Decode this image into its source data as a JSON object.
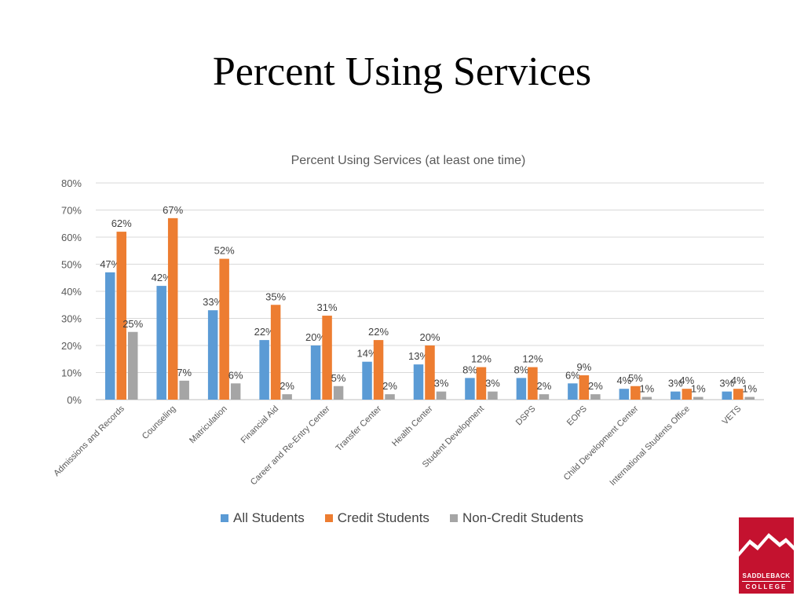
{
  "slide": {
    "title": "Percent Using Services"
  },
  "logo": {
    "line1": "SADDLEBACK",
    "line2": "COLLEGE"
  },
  "chart_data": {
    "type": "bar",
    "title": "Percent Using Services (at least one time)",
    "xlabel": "",
    "ylabel": "",
    "ylim": [
      0,
      80
    ],
    "yticks": [
      "0%",
      "10%",
      "20%",
      "30%",
      "40%",
      "50%",
      "60%",
      "70%",
      "80%"
    ],
    "grid": true,
    "legend_position": "bottom",
    "categories": [
      "Admissions and Records",
      "Counseling",
      "Matriculation",
      "Financial Aid",
      "Career and Re-Entry Center",
      "Transfer Center",
      "Health Center",
      "Student Development",
      "DSPS",
      "EOPS",
      "Child Development Center",
      "International Students Office",
      "VETS"
    ],
    "series": [
      {
        "name": "All Students",
        "color": "#5b9bd5",
        "values": [
          47,
          42,
          33,
          22,
          20,
          14,
          13,
          8,
          8,
          6,
          4,
          3,
          3
        ]
      },
      {
        "name": "Credit Students",
        "color": "#ed7d31",
        "values": [
          62,
          67,
          52,
          35,
          31,
          22,
          20,
          12,
          12,
          9,
          5,
          4,
          4
        ]
      },
      {
        "name": "Non-Credit Students",
        "color": "#a5a5a5",
        "values": [
          25,
          7,
          6,
          2,
          5,
          2,
          3,
          3,
          2,
          2,
          1,
          1,
          1
        ]
      }
    ]
  }
}
